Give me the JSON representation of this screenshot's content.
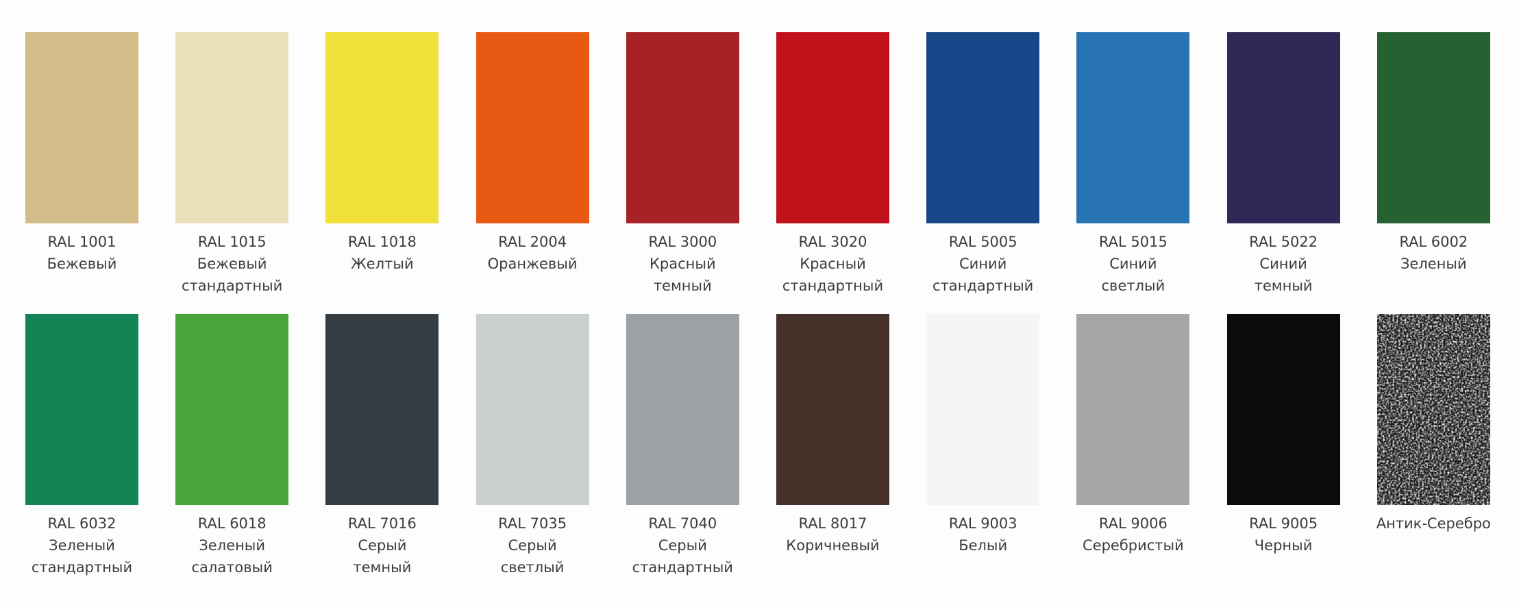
{
  "swatches": [
    {
      "code": "RAL 1001",
      "name_lines": [
        "Бежевый"
      ],
      "color": "#d2bc88"
    },
    {
      "code": "RAL 1015",
      "name_lines": [
        "Бежевый",
        "стандартный"
      ],
      "color": "#ebdfbb"
    },
    {
      "code": "RAL 1018",
      "name_lines": [
        "Желтый"
      ],
      "color": "#f2e03b"
    },
    {
      "code": "RAL 2004",
      "name_lines": [
        "Оранжевый"
      ],
      "color": "#e85a14"
    },
    {
      "code": "RAL 3000",
      "name_lines": [
        "Красный",
        "темный"
      ],
      "color": "#a62226"
    },
    {
      "code": "RAL 3020",
      "name_lines": [
        "Красный",
        "стандартный"
      ],
      "color": "#c1121c"
    },
    {
      "code": "RAL 5005",
      "name_lines": [
        "Синий",
        "стандартный"
      ],
      "color": "#164789"
    },
    {
      "code": "RAL 5015",
      "name_lines": [
        "Синий",
        "светлый"
      ],
      "color": "#2874b2"
    },
    {
      "code": "RAL 5022",
      "name_lines": [
        "Синий",
        "темный"
      ],
      "color": "#2f2958"
    },
    {
      "code": "RAL 6002",
      "name_lines": [
        "Зеленый"
      ],
      "color": "#256131"
    },
    {
      "code": "RAL 6032",
      "name_lines": [
        "Зеленый",
        "стандартный"
      ],
      "color": "#118354"
    },
    {
      "code": "RAL 6018",
      "name_lines": [
        "Зеленый",
        "салатовый"
      ],
      "color": "#4aa63c"
    },
    {
      "code": "RAL 7016",
      "name_lines": [
        "Серый",
        "темный"
      ],
      "color": "#363d42"
    },
    {
      "code": "RAL 7035",
      "name_lines": [
        "Серый",
        "светлый"
      ],
      "color": "#ccd0cc"
    },
    {
      "code": "RAL 7040",
      "name_lines": [
        "Серый",
        "стандартный"
      ],
      "color": "#9ca1a4"
    },
    {
      "code": "RAL 8017",
      "name_lines": [
        "Коричневый"
      ],
      "color": "#45302a"
    },
    {
      "code": "RAL 9003",
      "name_lines": [
        "Белый"
      ],
      "color": "#f3f6f3"
    },
    {
      "code": "RAL 9006",
      "name_lines": [
        "Серебристый"
      ],
      "color": "#a5a6a5"
    },
    {
      "code": "RAL 9005",
      "name_lines": [
        "Черный"
      ],
      "color": "#0b0b0c"
    },
    {
      "code": "",
      "name_lines": [
        "Антик-Серебро"
      ],
      "color": "#2a2a2a",
      "texture": "hammered-silver"
    }
  ]
}
